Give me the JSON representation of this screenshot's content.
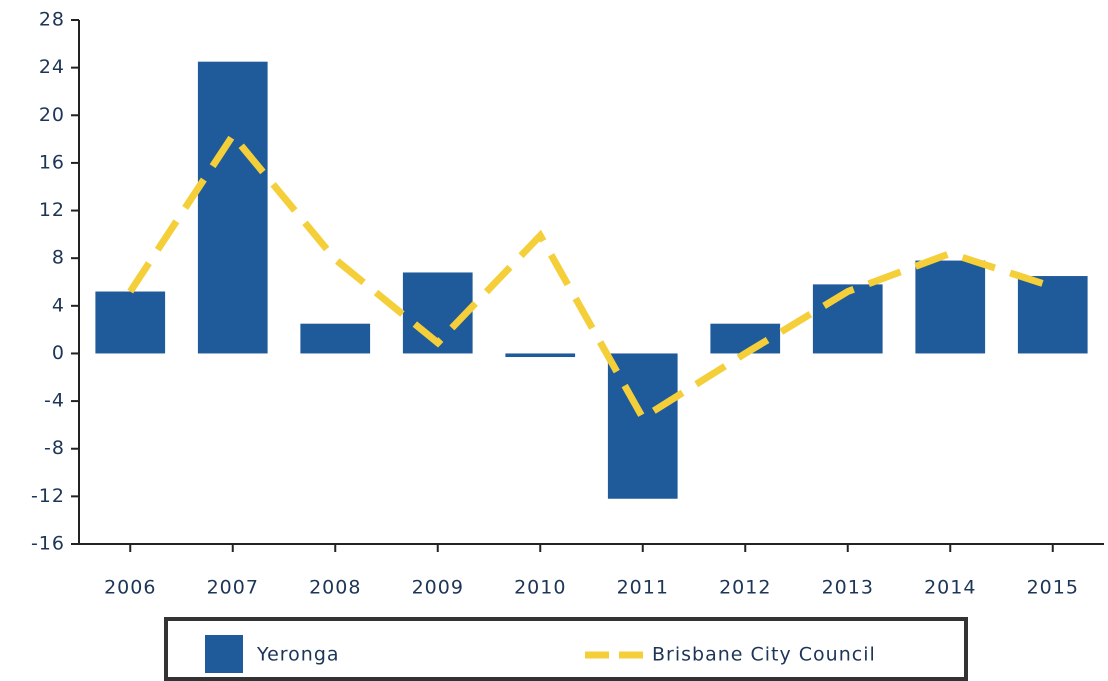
{
  "chart_data": {
    "type": "bar_line",
    "categories": [
      "2006",
      "2007",
      "2008",
      "2009",
      "2010",
      "2011",
      "2012",
      "2013",
      "2014",
      "2015"
    ],
    "series": [
      {
        "name": "Yeronga",
        "type": "bar",
        "color": "#1f5a9a",
        "values": [
          5.2,
          24.5,
          2.5,
          6.8,
          -0.3,
          -12.2,
          2.5,
          5.8,
          7.8,
          6.5
        ]
      },
      {
        "name": "Brisbane City Council",
        "type": "line",
        "color": "#f5cf3a",
        "values": [
          5.2,
          18.3,
          7.9,
          0.9,
          9.9,
          -5.4,
          0,
          5.2,
          8.4,
          5.6
        ]
      }
    ],
    "ylim": [
      -16,
      28
    ],
    "yticks": [
      -16,
      -12,
      -8,
      -4,
      0,
      4,
      8,
      12,
      16,
      20,
      24,
      28
    ]
  }
}
